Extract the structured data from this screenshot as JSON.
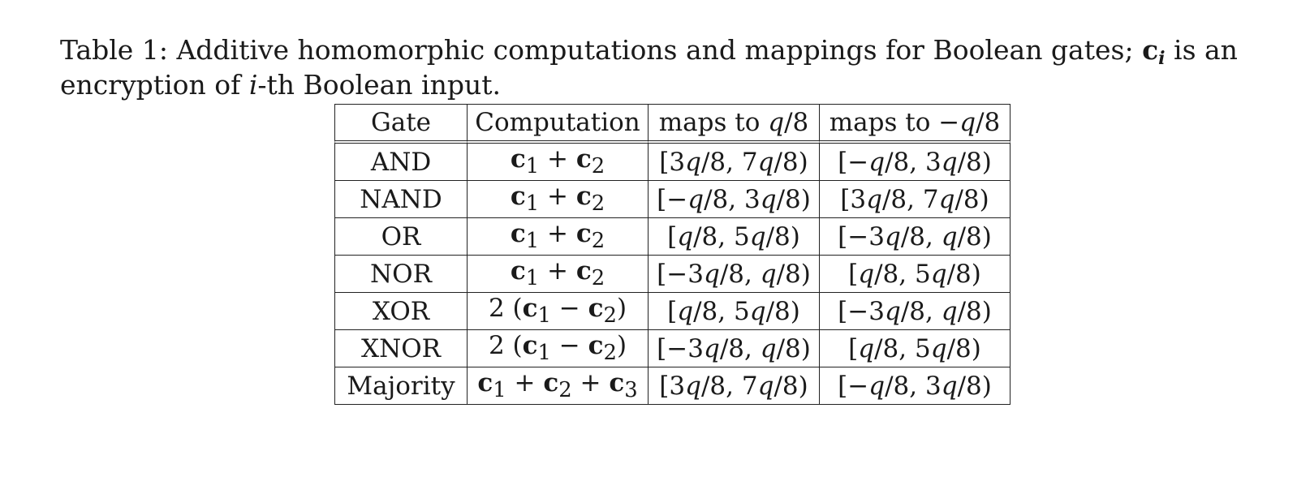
{
  "caption": {
    "prefix": "Table 1:",
    "text_before": "Additive homomorphic computations and mappings for Boolean gates;",
    "vector_symbol": "c",
    "vector_subscript": "i",
    "text_after": "is an encryption of",
    "ordinal_var": "i",
    "text_end": "-th Boolean input."
  },
  "table": {
    "headers": {
      "gate": "Gate",
      "computation": "Computation",
      "maps_pos": "maps to q/8",
      "maps_neg": "maps to −q/8"
    },
    "rows": [
      {
        "gate": "AND",
        "computation": "c₁ + c₂",
        "maps_pos": "[3q/8, 7q/8)",
        "maps_neg": "[−q/8, 3q/8)"
      },
      {
        "gate": "NAND",
        "computation": "c₁ + c₂",
        "maps_pos": "[−q/8, 3q/8)",
        "maps_neg": "[3q/8, 7q/8)"
      },
      {
        "gate": "OR",
        "computation": "c₁ + c₂",
        "maps_pos": "[q/8, 5q/8)",
        "maps_neg": "[−3q/8, q/8)"
      },
      {
        "gate": "NOR",
        "computation": "c₁ + c₂",
        "maps_pos": "[−3q/8, q/8)",
        "maps_neg": "[q/8, 5q/8)"
      },
      {
        "gate": "XOR",
        "computation": "2 (c₁ − c₂)",
        "maps_pos": "[q/8, 5q/8)",
        "maps_neg": "[−3q/8, q/8)"
      },
      {
        "gate": "XNOR",
        "computation": "2 (c₁ − c₂)",
        "maps_pos": "[−3q/8, q/8)",
        "maps_neg": "[q/8, 5q/8)"
      },
      {
        "gate": "Majority",
        "computation": "c₁ + c₂ + c₃",
        "maps_pos": "[3q/8, 7q/8)",
        "maps_neg": "[−q/8, 3q/8)"
      }
    ]
  }
}
